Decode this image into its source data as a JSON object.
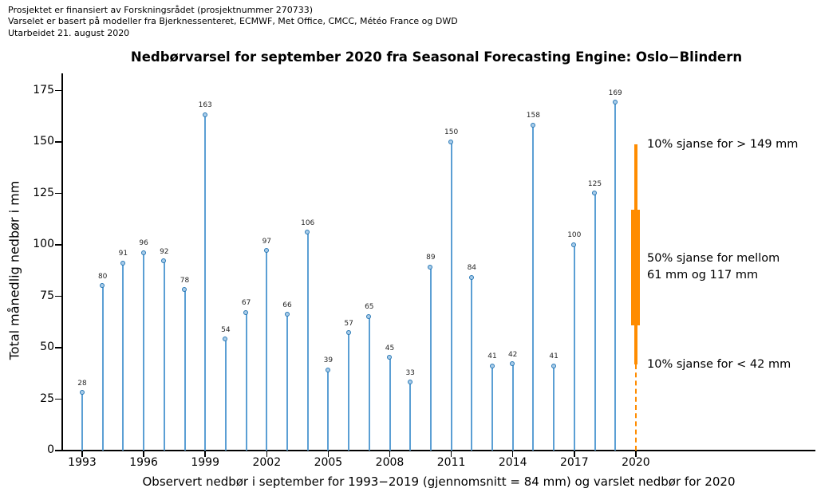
{
  "header": {
    "line1": "Prosjektet er finansiert av Forskningsrådet (prosjektnummer 270733)",
    "line2": "Varselet er basert på modeller fra Bjerknessenteret, ECMWF, Met Office, CMCC, Météo France og DWD",
    "line3": "Utarbeidet 21. august 2020"
  },
  "chart_data": {
    "type": "lollipop",
    "title": "Nedbørvarsel for september 2020 fra Seasonal Forecasting Engine: Oslo−Blindern",
    "ylabel": "Total månedlig nedbør i mm",
    "xlabel": "Observert nedbør i september for 1993−2019 (gjennomsnitt = 84 mm) og varslet nedbør for 2020",
    "ylim": [
      0,
      185
    ],
    "yticks": [
      0,
      25,
      50,
      75,
      100,
      125,
      150,
      175
    ],
    "xtick_years": [
      1993,
      1996,
      1999,
      2002,
      2005,
      2008,
      2011,
      2014,
      2017,
      2020
    ],
    "grid": false,
    "legend_position": "none",
    "years": [
      1993,
      1994,
      1995,
      1996,
      1997,
      1998,
      1999,
      2000,
      2001,
      2002,
      2003,
      2004,
      2005,
      2006,
      2007,
      2008,
      2009,
      2010,
      2011,
      2012,
      2013,
      2014,
      2015,
      2016,
      2017,
      2018,
      2019
    ],
    "values": [
      28,
      80,
      91,
      96,
      92,
      78,
      163,
      54,
      67,
      97,
      66,
      106,
      39,
      57,
      65,
      45,
      33,
      89,
      150,
      84,
      41,
      42,
      158,
      41,
      100,
      125,
      169
    ],
    "mean_1993_2019_mm": 84,
    "forecast": {
      "year": 2020,
      "p90_upper_mm": 149,
      "box_upper_mm": 117,
      "box_lower_mm": 61,
      "p10_lower_mm": 42,
      "annotation_high": "10% sjanse for > 149 mm",
      "annotation_mid": "50% sjanse for mellom\n61 mm og 117 mm",
      "annotation_low": "10% sjanse for < 42 mm"
    },
    "colors": {
      "stem": "#5b9fd4",
      "marker_edge": "#2878b5",
      "marker_fill": "#a9cce9",
      "forecast_orange": "#ff8c00",
      "axis": "#000000"
    }
  }
}
